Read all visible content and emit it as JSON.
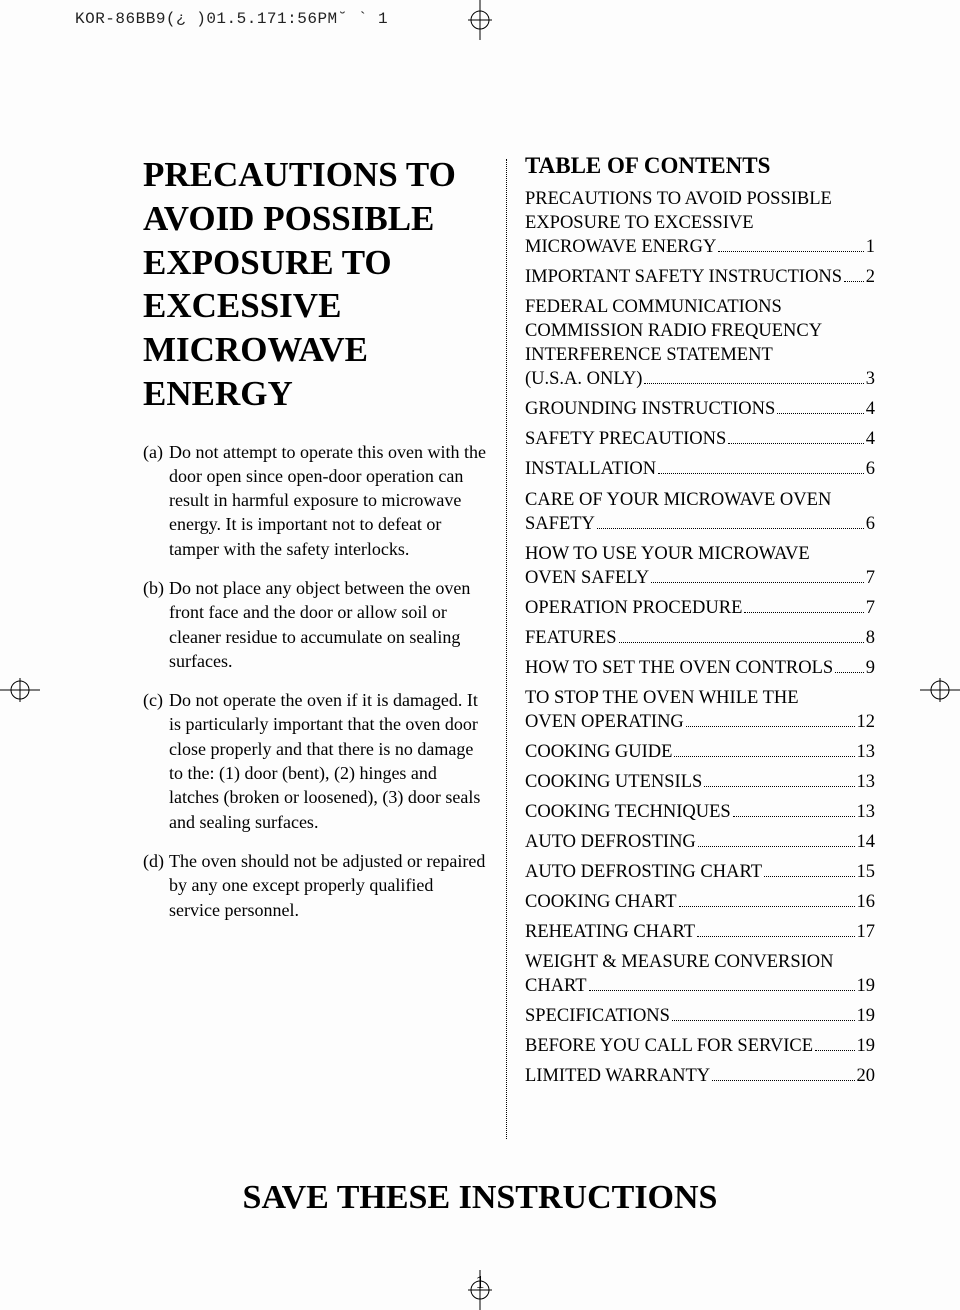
{
  "header_strip": "KOR-86BB9(¿ )01.5.171:56PM˘  `  1",
  "left": {
    "title": "PRECAUTIONS TO AVOID POSSIBLE EXPOSURE TO EXCESSIVE MICROWAVE ENERGY",
    "items": [
      {
        "marker": "(a)",
        "text": "Do not attempt to operate this oven with the door open since open-door operation can result in harmful exposure to microwave energy. It is important not to defeat or tamper with the safety interlocks."
      },
      {
        "marker": "(b)",
        "text": "Do not place any object between the oven front face and the door or allow soil or cleaner residue to accumulate on sealing surfaces."
      },
      {
        "marker": "(c)",
        "text": "Do not operate the oven if it is damaged. It is particularly important that the oven door close properly and that there is no damage to the: (1) door (bent), (2) hinges and latches (broken or loosened), (3) door seals and sealing surfaces."
      },
      {
        "marker": "(d)",
        "text": "The oven should not be adjusted or repaired by any one except properly qualified service personnel."
      }
    ]
  },
  "toc": {
    "title": "TABLE OF CONTENTS",
    "entries": [
      {
        "pre": "PRECAUTIONS TO AVOID POSSIBLE EXPOSURE TO EXCESSIVE",
        "last": "MICROWAVE ENERGY",
        "page": "1"
      },
      {
        "pre": "",
        "last": "IMPORTANT SAFETY INSTRUCTIONS",
        "page": "2"
      },
      {
        "pre": "FEDERAL COMMUNICATIONS COMMISSION RADIO FREQUENCY INTERFERENCE STATEMENT",
        "last": "(U.S.A. ONLY)",
        "page": "3"
      },
      {
        "pre": "",
        "last": "GROUNDING INSTRUCTIONS",
        "page": "4"
      },
      {
        "pre": "",
        "last": "SAFETY PRECAUTIONS",
        "page": "4"
      },
      {
        "pre": "",
        "last": "INSTALLATION",
        "page": "6"
      },
      {
        "pre": "CARE OF YOUR MICROWAVE OVEN",
        "last": "SAFETY",
        "page": "6"
      },
      {
        "pre": "HOW TO USE YOUR MICROWAVE",
        "last": "OVEN SAFELY",
        "page": "7"
      },
      {
        "pre": "",
        "last": "OPERATION PROCEDURE",
        "page": "7"
      },
      {
        "pre": "",
        "last": "FEATURES",
        "page": "8"
      },
      {
        "pre": "",
        "last": "HOW TO SET THE OVEN CONTROLS",
        "page": "9"
      },
      {
        "pre": "TO STOP THE OVEN WHILE THE",
        "last": "OVEN OPERATING",
        "page": "12"
      },
      {
        "pre": "",
        "last": "COOKING GUIDE",
        "page": "13"
      },
      {
        "pre": "",
        "last": "COOKING UTENSILS",
        "page": "13"
      },
      {
        "pre": "",
        "last": "COOKING TECHNIQUES",
        "page": "13"
      },
      {
        "pre": "",
        "last": "AUTO DEFROSTING",
        "page": "14"
      },
      {
        "pre": "",
        "last": "AUTO DEFROSTING CHART",
        "page": "15"
      },
      {
        "pre": "",
        "last": "COOKING CHART",
        "page": "16"
      },
      {
        "pre": "",
        "last": "REHEATING CHART",
        "page": "17"
      },
      {
        "pre": "WEIGHT & MEASURE CONVERSION",
        "last": "CHART",
        "page": "19"
      },
      {
        "pre": "",
        "last": "SPECIFICATIONS",
        "page": "19"
      },
      {
        "pre": "",
        "last": "BEFORE YOU CALL FOR SERVICE",
        "page": "19"
      },
      {
        "pre": "",
        "last": "LIMITED WARRANTY",
        "page": "20"
      }
    ]
  },
  "save": "SAVE THESE INSTRUCTIONS",
  "page_number": "1"
}
